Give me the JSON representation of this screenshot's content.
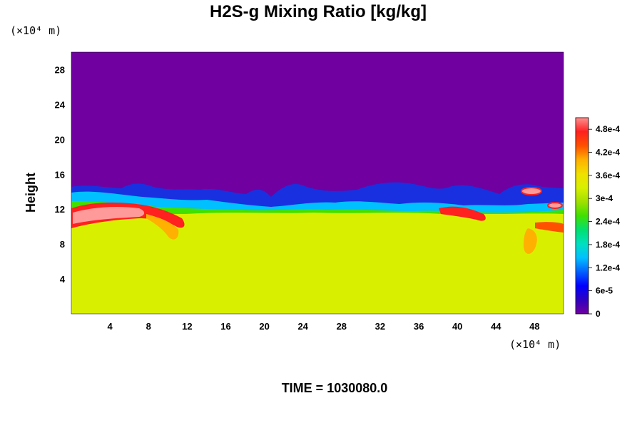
{
  "chart_data": {
    "type": "heatmap",
    "title": "H2S-g Mixing Ratio [kg/kg]",
    "ylabel": "Height",
    "x_unit": "(×10⁴ m)",
    "y_unit": "(×10⁴ m)",
    "xlim": [
      0,
      51
    ],
    "ylim": [
      0,
      30
    ],
    "x_ticks": [
      "4",
      "8",
      "12",
      "16",
      "20",
      "24",
      "28",
      "32",
      "36",
      "40",
      "44",
      "48"
    ],
    "y_ticks": [
      "4",
      "8",
      "12",
      "16",
      "20",
      "24",
      "28"
    ],
    "x_tick_values": [
      4,
      8,
      12,
      16,
      20,
      24,
      28,
      32,
      36,
      40,
      44,
      48
    ],
    "y_tick_values": [
      4,
      8,
      12,
      16,
      20,
      24,
      28
    ],
    "colorbar": {
      "ticks": [
        "4.8e-4",
        "4.2e-4",
        "3.6e-4",
        "3e-4",
        "2.4e-4",
        "1.8e-4",
        "1.2e-4",
        "6e-5",
        "0"
      ],
      "tick_values": [
        0.00048,
        0.00042,
        0.00036,
        0.0003,
        0.00024,
        0.00018,
        0.00012,
        6e-05,
        0
      ],
      "range": [
        0,
        0.00051
      ],
      "colors": [
        "#7000a0",
        "#3000c0",
        "#0000ff",
        "#0060ff",
        "#00c0ff",
        "#00e0c0",
        "#00e070",
        "#40e000",
        "#a0e000",
        "#d8f000",
        "#f0e000",
        "#ffb000",
        "#ff5000",
        "#ff2020",
        "#ff9090"
      ]
    },
    "regions": [
      {
        "name": "upper layer",
        "y_range": [
          15,
          30
        ],
        "value": 0
      },
      {
        "name": "lower layer",
        "y_range": [
          0,
          11
        ],
        "value": 0.00036
      },
      {
        "name": "high-concentration patch",
        "x_range": [
          0,
          8
        ],
        "y_range": [
          10,
          12
        ],
        "value": 0.0005
      }
    ],
    "footer": "TIME = 1030080.0"
  }
}
